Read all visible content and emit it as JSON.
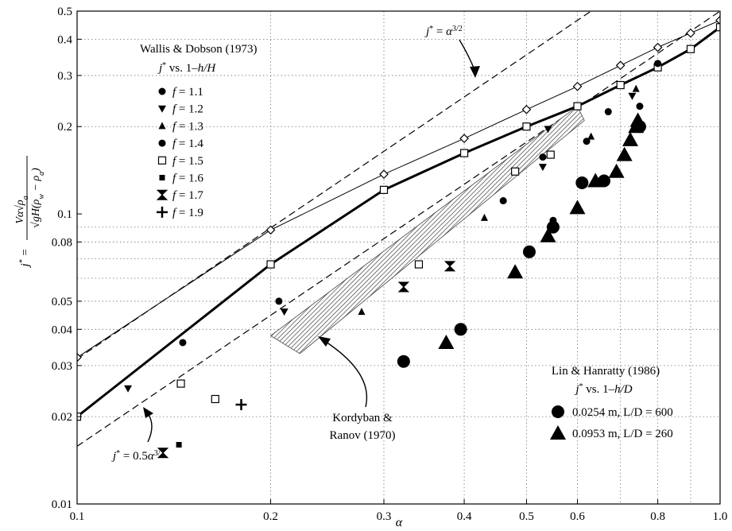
{
  "chart_data": {
    "type": "scatter",
    "x_scale": "log",
    "y_scale": "log",
    "xlim": [
      0.1,
      1.0
    ],
    "ylim": [
      0.01,
      0.5
    ],
    "grid": "dotted",
    "xlabel": "α",
    "ylabel": "j* = Vα√ρa / √gH(ρw − ρa)",
    "x_ticks": [
      {
        "v": 0.1,
        "t": "0.1"
      },
      {
        "v": 0.2,
        "t": "0.2"
      },
      {
        "v": 0.3,
        "t": "0.3"
      },
      {
        "v": 0.4,
        "t": "0.4"
      },
      {
        "v": 0.5,
        "t": "0.5"
      },
      {
        "v": 0.6,
        "t": "0.6"
      },
      {
        "v": 0.8,
        "t": "0.8"
      },
      {
        "v": 1.0,
        "t": "1.0"
      }
    ],
    "y_ticks": [
      {
        "v": 0.01,
        "t": "0.01"
      },
      {
        "v": 0.02,
        "t": "0.02"
      },
      {
        "v": 0.03,
        "t": "0.03"
      },
      {
        "v": 0.04,
        "t": "0.04"
      },
      {
        "v": 0.05,
        "t": "0.05"
      },
      {
        "v": 0.08,
        "t": "0.08"
      },
      {
        "v": 0.1,
        "t": "0.1"
      },
      {
        "v": 0.2,
        "t": "0.2"
      },
      {
        "v": 0.3,
        "t": "0.3"
      },
      {
        "v": 0.4,
        "t": "0.4"
      },
      {
        "v": 0.5,
        "t": "0.5"
      }
    ],
    "grid_y": [
      0.02,
      0.03,
      0.04,
      0.05,
      0.06,
      0.07,
      0.08,
      0.09,
      0.2,
      0.3,
      0.4
    ],
    "grid_x": [
      0.2,
      0.3,
      0.4,
      0.5,
      0.6,
      0.7,
      0.8,
      0.9
    ],
    "ref_lines": [
      {
        "name": "j* = α^(3/2)",
        "coef": 1.0
      },
      {
        "name": "j* = 0.5α^(3/2)",
        "coef": 0.5
      }
    ],
    "curves": [
      {
        "name": "diamond-curve",
        "marker": "diamond",
        "x": [
          0.1,
          0.2,
          0.3,
          0.4,
          0.5,
          0.6,
          0.7,
          0.8,
          0.9,
          1.0
        ],
        "y": [
          0.032,
          0.088,
          0.137,
          0.182,
          0.229,
          0.275,
          0.325,
          0.375,
          0.42,
          0.465
        ]
      },
      {
        "name": "square-curve",
        "marker": "square",
        "x": [
          0.1,
          0.2,
          0.3,
          0.4,
          0.5,
          0.6,
          0.7,
          0.8,
          0.9,
          1.0
        ],
        "y": [
          0.02,
          0.067,
          0.121,
          0.162,
          0.2,
          0.235,
          0.278,
          0.32,
          0.37,
          0.44
        ]
      }
    ],
    "band": {
      "upper": [
        [
          0.2,
          0.038
        ],
        [
          0.6,
          0.235
        ]
      ],
      "lower": [
        [
          0.222,
          0.033
        ],
        [
          0.615,
          0.21
        ]
      ]
    },
    "series": [
      {
        "name": "f = 1.1",
        "marker": "circle",
        "x": [
          0.55
        ],
        "y": [
          0.095
        ]
      },
      {
        "name": "f = 1.2",
        "marker": "triangle-down",
        "x": [
          0.12,
          0.21,
          0.53,
          0.54,
          0.73
        ],
        "y": [
          0.025,
          0.046,
          0.145,
          0.196,
          0.255
        ]
      },
      {
        "name": "f = 1.3",
        "marker": "triangle-up",
        "x": [
          0.277,
          0.43,
          0.63,
          0.74
        ],
        "y": [
          0.046,
          0.097,
          0.185,
          0.27
        ]
      },
      {
        "name": "f = 1.4",
        "marker": "circle",
        "x": [
          0.146,
          0.206,
          0.46,
          0.53,
          0.62,
          0.67,
          0.75,
          0.8
        ],
        "y": [
          0.036,
          0.05,
          0.111,
          0.157,
          0.178,
          0.225,
          0.235,
          0.33
        ]
      },
      {
        "name": "f = 1.5",
        "marker": "square",
        "x": [
          0.145,
          0.164,
          0.34,
          0.48,
          0.545
        ],
        "y": [
          0.026,
          0.023,
          0.067,
          0.14,
          0.16
        ]
      },
      {
        "name": "f = 1.6",
        "marker": "square-small",
        "x": [
          0.144
        ],
        "y": [
          0.016
        ]
      },
      {
        "name": "f = 1.7",
        "marker": "bowtie",
        "x": [
          0.136,
          0.322,
          0.38
        ],
        "y": [
          0.015,
          0.056,
          0.066
        ]
      },
      {
        "name": "f = 1.9",
        "marker": "plus",
        "x": [
          0.18
        ],
        "y": [
          0.022
        ]
      },
      {
        "name": "0.0254 m, L/D = 600",
        "marker": "circle-large",
        "x": [
          0.322,
          0.395,
          0.505,
          0.55,
          0.61,
          0.66,
          0.75
        ],
        "y": [
          0.031,
          0.04,
          0.074,
          0.09,
          0.128,
          0.13,
          0.2
        ]
      },
      {
        "name": "0.0953 m, L/D = 260",
        "marker": "triangle-large",
        "x": [
          0.375,
          0.48,
          0.54,
          0.6,
          0.64,
          0.69,
          0.71,
          0.725,
          0.74,
          0.745
        ],
        "y": [
          0.036,
          0.063,
          0.084,
          0.105,
          0.13,
          0.14,
          0.16,
          0.18,
          0.2,
          0.21
        ]
      }
    ]
  },
  "annotations": {
    "wallis_title": "Wallis & Dobson (1973)",
    "wallis_sub_pre": "vs. 1",
    "wallis_sub_post": "h/H",
    "lin_title": "Lin & Hanratty (1986)",
    "lin_sub_pre": "vs. 1",
    "lin_sub_post": "h/D",
    "kordyban_1": "Kordyban &",
    "kordyban_2": "Ranov (1970)",
    "legend_f": [
      {
        "label": "f = 1.1",
        "marker": "circle"
      },
      {
        "label": "f = 1.2",
        "marker": "triangle-down"
      },
      {
        "label": "f = 1.3",
        "marker": "triangle-up"
      },
      {
        "label": "f = 1.4",
        "marker": "circle"
      },
      {
        "label": "f = 1.5",
        "marker": "square"
      },
      {
        "label": "f = 1.6",
        "marker": "square-small"
      },
      {
        "label": "f = 1.7",
        "marker": "bowtie"
      },
      {
        "label": "f = 1.9",
        "marker": "plus"
      }
    ],
    "legend_lin": [
      {
        "label": "0.0254 m, L/D = 600",
        "marker": "circle-large"
      },
      {
        "label": "0.0953 m, L/D = 260",
        "marker": "triangle-large"
      }
    ]
  }
}
